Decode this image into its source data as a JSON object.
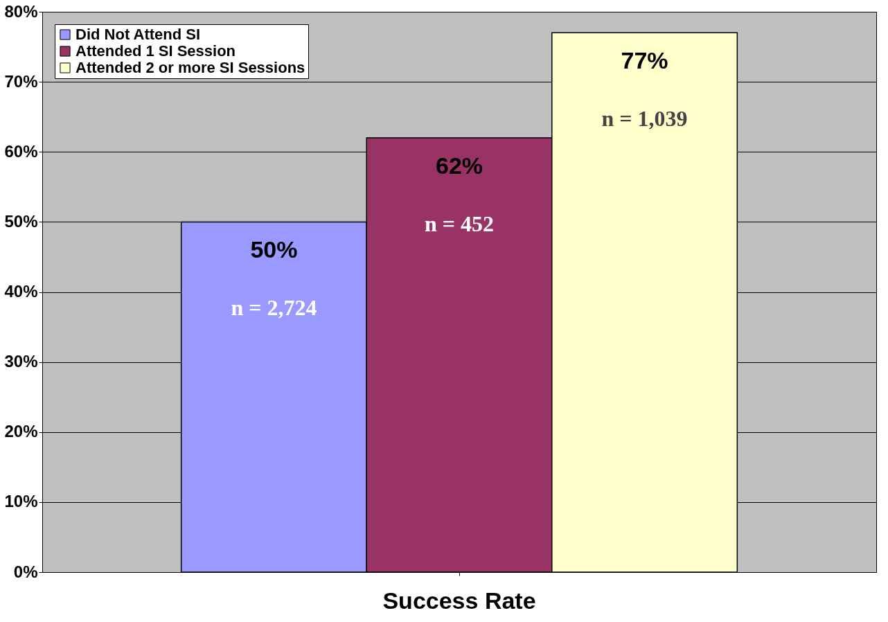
{
  "chart_data": {
    "type": "bar",
    "categories": [
      "Success Rate"
    ],
    "series": [
      {
        "name": "Did Not Attend SI",
        "color": "#9999ff",
        "values": [
          50
        ],
        "value_labels": [
          "50%"
        ]
      },
      {
        "name": "Attended 1 SI Session",
        "color": "#993366",
        "values": [
          62
        ],
        "value_labels": [
          "62%"
        ]
      },
      {
        "name": "Attended 2 or more SI Sessions",
        "color": "#ffffcc",
        "values": [
          77
        ],
        "value_labels": [
          "77%"
        ]
      }
    ],
    "annotations": [
      "n = 2,724",
      "n = 452",
      "n = 1,039"
    ],
    "ylim": [
      0,
      80
    ],
    "yticks": [
      {
        "value": 0,
        "label": "0%"
      },
      {
        "value": 10,
        "label": "10%"
      },
      {
        "value": 20,
        "label": "20%"
      },
      {
        "value": 30,
        "label": "30%"
      },
      {
        "value": 40,
        "label": "40%"
      },
      {
        "value": 50,
        "label": "50%"
      },
      {
        "value": 60,
        "label": "60%"
      },
      {
        "value": 70,
        "label": "70%"
      },
      {
        "value": 80,
        "label": "80%"
      }
    ],
    "grid": "y",
    "legend": "top left"
  }
}
